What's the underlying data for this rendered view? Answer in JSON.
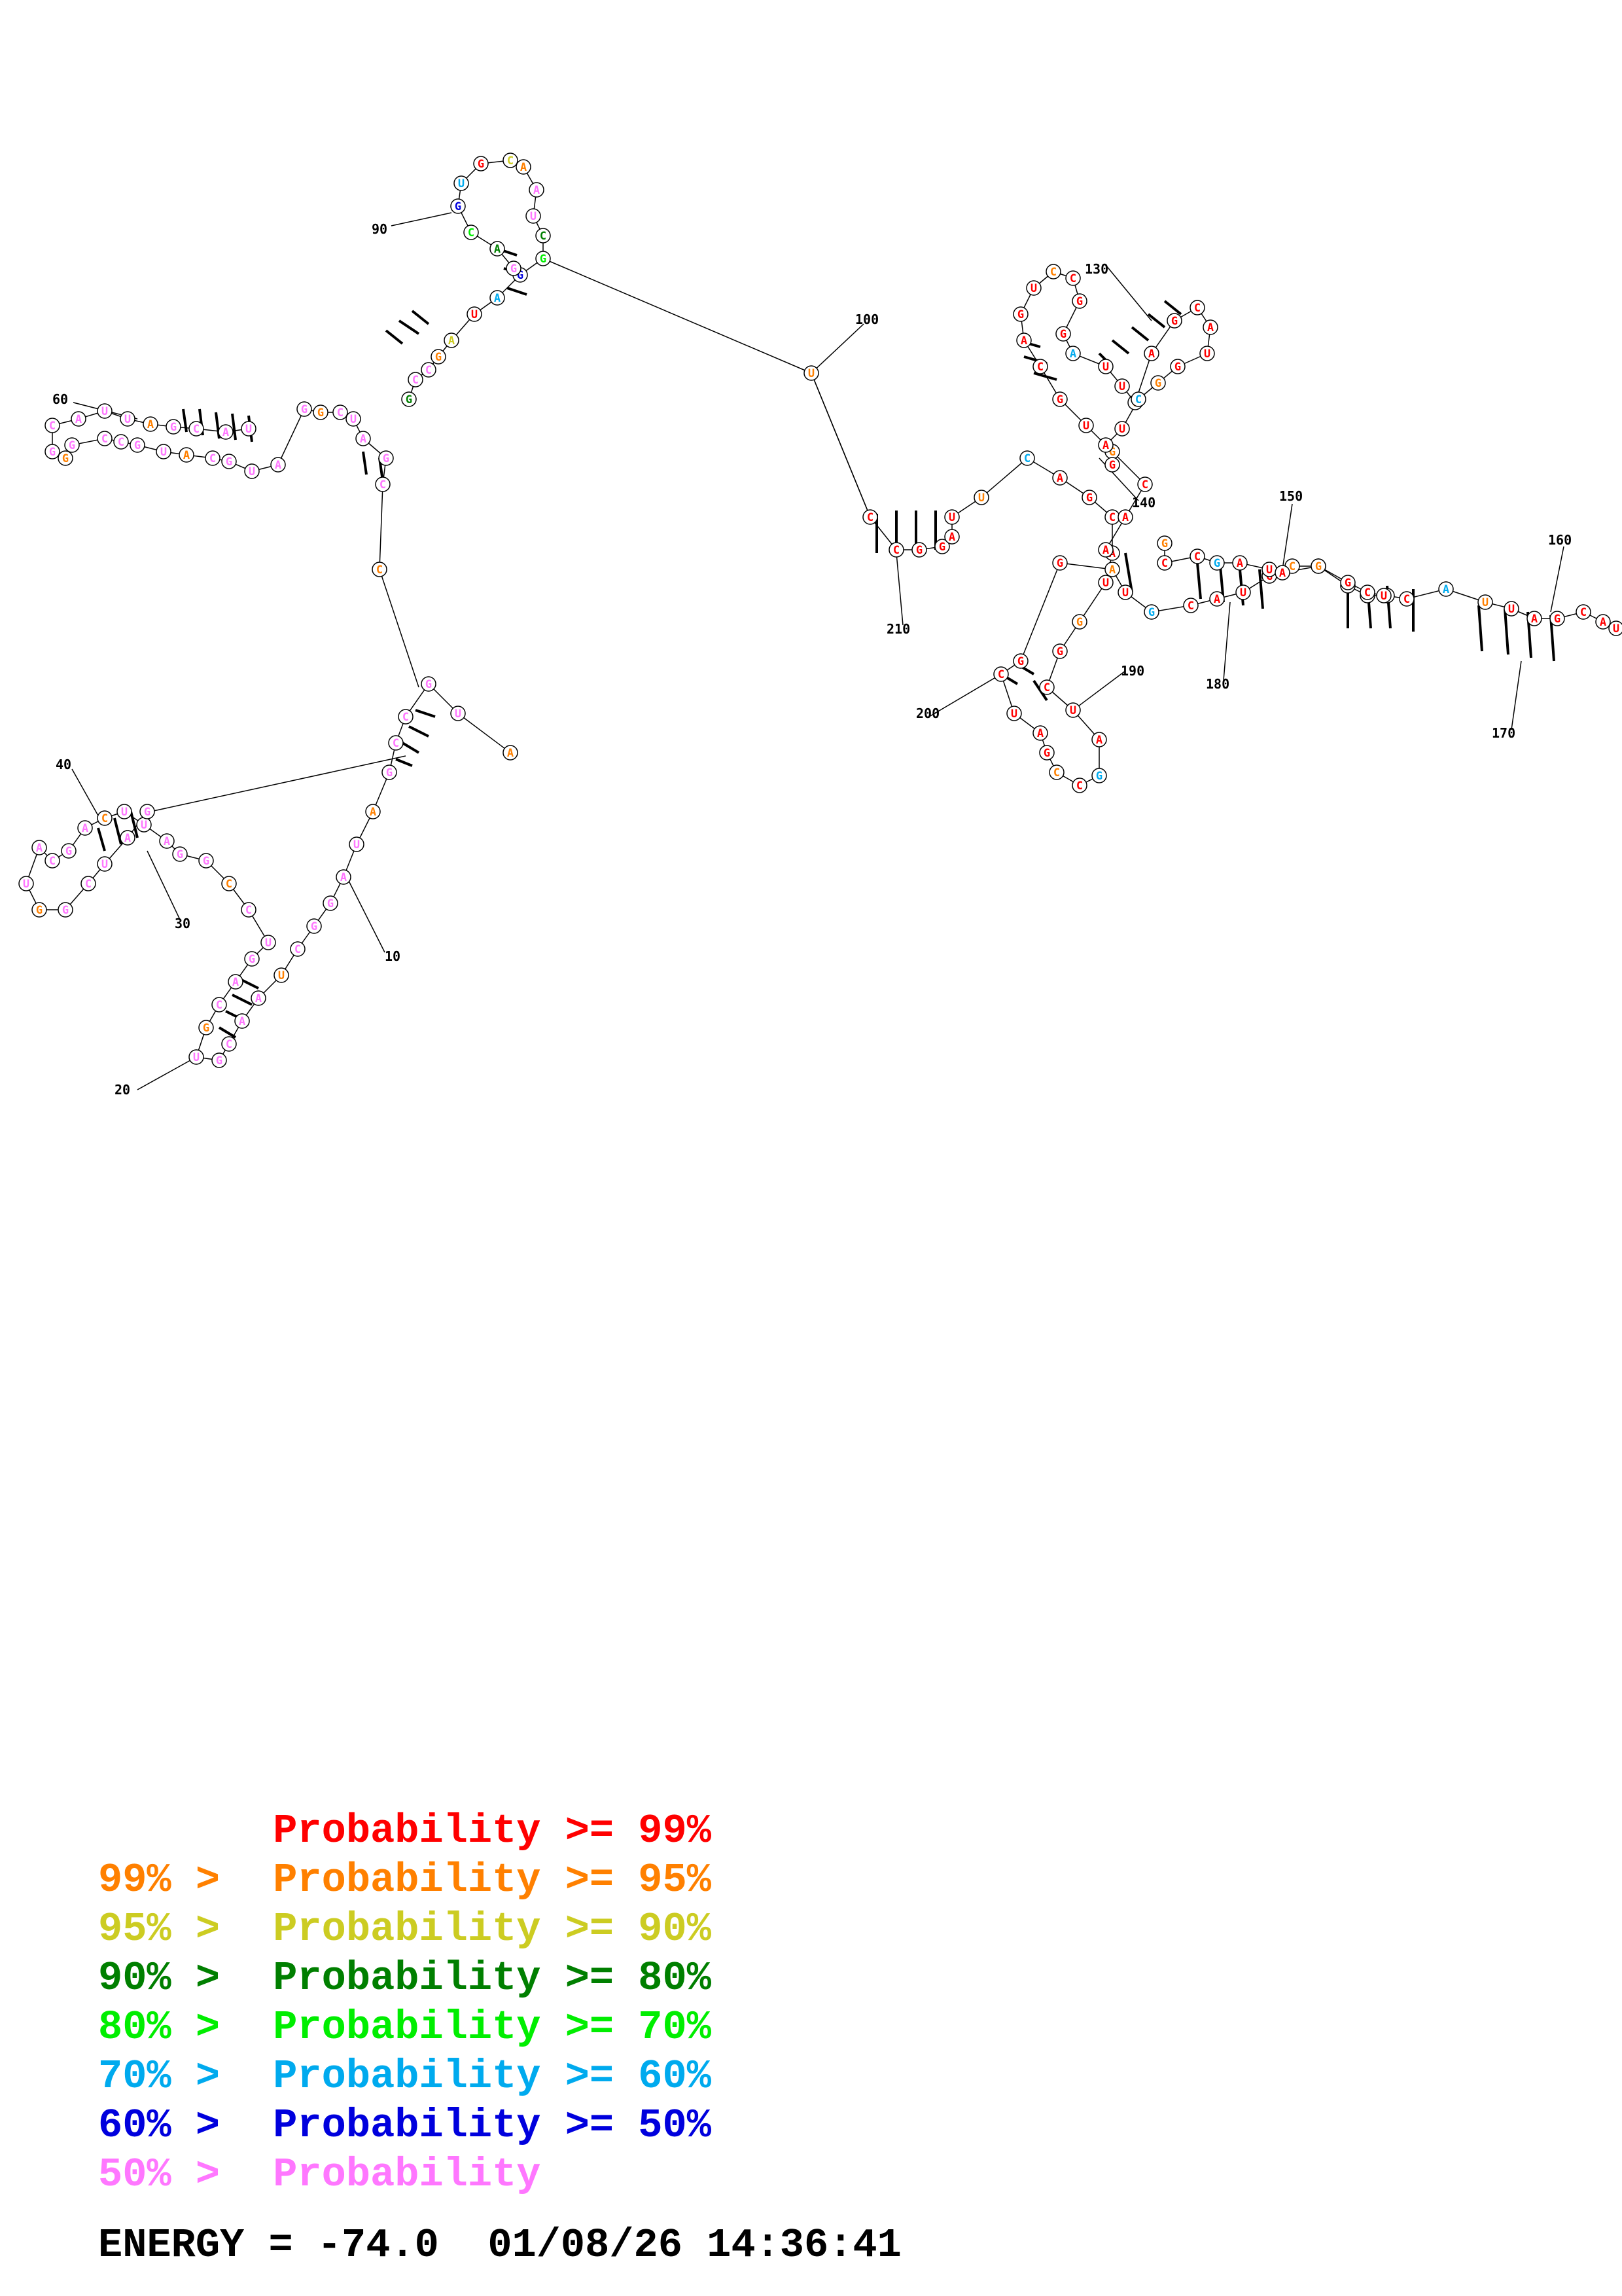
{
  "colors": {
    "p99": "#ff0000",
    "p95": "#ff8000",
    "p90": "#cccc22",
    "p80": "#007f00",
    "p70": "#00ee00",
    "p60": "#00aaee",
    "p50": "#0000dd",
    "plow": "#ff77ff"
  },
  "index_labels": [
    "10",
    "20",
    "30",
    "40",
    "60",
    "90",
    "100",
    "130",
    "140",
    "150",
    "160",
    "170",
    "180",
    "190",
    "200",
    "210"
  ],
  "legend": {
    "rows": [
      {
        "prefix": "",
        "label": "Probability >= 99%",
        "color": "p99"
      },
      {
        "prefix": "99% >",
        "label": "Probability >= 95%",
        "color": "p95"
      },
      {
        "prefix": "95% >",
        "label": "Probability >= 90%",
        "color": "p90"
      },
      {
        "prefix": "90% >",
        "label": "Probability >= 80%",
        "color": "p80"
      },
      {
        "prefix": "80% >",
        "label": "Probability >= 70%",
        "color": "p70"
      },
      {
        "prefix": "70% >",
        "label": "Probability >= 60%",
        "color": "p60"
      },
      {
        "prefix": "60% >",
        "label": "Probability >= 50%",
        "color": "p50"
      },
      {
        "prefix": "50% >",
        "label": "Probability",
        "color": "plow"
      }
    ]
  },
  "energy": {
    "label": "ENERGY = -74.0",
    "timestamp": "01/08/26 14:36:41"
  }
}
